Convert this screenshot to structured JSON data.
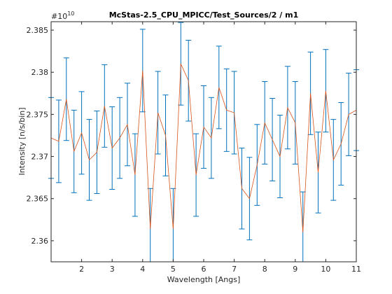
{
  "chart_data": {
    "type": "line",
    "title": "McStas-2.5_CPU_MPICC/Test_Sources/2 / m1",
    "xlabel": "Wavelength [Angs]",
    "ylabel": "Intensity [n/s/bin]",
    "y_exponent_base": "#10",
    "y_exponent_power": "10",
    "xlim": [
      1,
      11
    ],
    "ylim": [
      2.3575,
      2.386
    ],
    "x_ticks": [
      2,
      3,
      4,
      5,
      6,
      7,
      8,
      9,
      10,
      11
    ],
    "y_ticks": [
      2.36,
      2.365,
      2.37,
      2.375,
      2.38,
      2.385
    ],
    "y_tick_labels": [
      "2.36",
      "2.365",
      "2.37",
      "2.375",
      "2.38",
      "2.385"
    ],
    "grid": false,
    "colors": {
      "line": "#d95319",
      "errorbar": "#0072bd",
      "axes": "#262626"
    },
    "series": [
      {
        "x": [
          1.0,
          1.25,
          1.5,
          1.75,
          2.0,
          2.25,
          2.5,
          2.75,
          3.0,
          3.25,
          3.5,
          3.75,
          4.0,
          4.25,
          4.5,
          4.75,
          5.0,
          5.25,
          5.5,
          5.75,
          6.0,
          6.25,
          6.5,
          6.75,
          7.0,
          7.25,
          7.5,
          7.75,
          8.0,
          8.25,
          8.5,
          8.75,
          9.0,
          9.25,
          9.5,
          9.75,
          10.0,
          10.25,
          10.5,
          10.75,
          11.0
        ],
        "values": [
          2.3722,
          2.3718,
          2.3768,
          2.3706,
          2.3728,
          2.3696,
          2.3705,
          2.376,
          2.371,
          2.3722,
          2.3738,
          2.3678,
          2.3802,
          2.3614,
          2.3752,
          2.3725,
          2.3614,
          2.381,
          2.379,
          2.3678,
          2.3735,
          2.3722,
          2.3782,
          2.3755,
          2.3752,
          2.3662,
          2.365,
          2.369,
          2.374,
          2.372,
          2.37,
          2.3758,
          2.374,
          2.361,
          2.3775,
          2.3681,
          2.3778,
          2.3696,
          2.3715,
          2.375,
          2.3755
        ],
        "errors": [
          0.0048,
          0.0049,
          0.0049,
          0.0049,
          0.0049,
          0.0048,
          0.0049,
          0.0049,
          0.0049,
          0.0048,
          0.0049,
          0.0049,
          0.0049,
          0.0048,
          0.0049,
          0.0048,
          0.0048,
          0.0049,
          0.0048,
          0.0049,
          0.0049,
          0.0048,
          0.0049,
          0.0049,
          0.0049,
          0.0048,
          0.0049,
          0.0048,
          0.0049,
          0.0049,
          0.0049,
          0.0049,
          0.0049,
          0.0048,
          0.0049,
          0.0048,
          0.0049,
          0.0048,
          0.0049,
          0.0049,
          0.0048
        ]
      }
    ]
  }
}
